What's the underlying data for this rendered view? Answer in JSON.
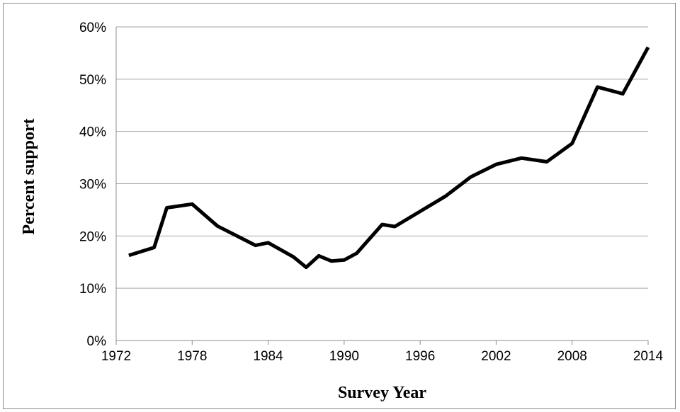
{
  "chart_data": {
    "type": "line",
    "title": "",
    "xlabel": "Survey Year",
    "ylabel": "Percent support",
    "xlim": [
      1972,
      2014
    ],
    "ylim": [
      0,
      60
    ],
    "x_ticks": [
      1972,
      1978,
      1984,
      1990,
      1996,
      2002,
      2008,
      2014
    ],
    "x_tick_labels": [
      "1972",
      "1978",
      "1984",
      "1990",
      "1996",
      "2002",
      "2008",
      "2014"
    ],
    "y_ticks": [
      0,
      10,
      20,
      30,
      40,
      50,
      60
    ],
    "y_tick_labels": [
      "0%",
      "10%",
      "20%",
      "30%",
      "40%",
      "50%",
      "60%"
    ],
    "grid": "horizontal",
    "legend": "none",
    "series": [
      {
        "color": "#000000",
        "x": [
          1973,
          1975,
          1976,
          1978,
          1980,
          1983,
          1984,
          1986,
          1987,
          1988,
          1989,
          1990,
          1991,
          1993,
          1994,
          1996,
          1998,
          2000,
          2002,
          2004,
          2006,
          2008,
          2010,
          2012,
          2014
        ],
        "y": [
          16.3,
          17.8,
          25.4,
          26.1,
          21.9,
          18.2,
          18.7,
          16.0,
          14.0,
          16.2,
          15.2,
          15.4,
          16.7,
          22.2,
          21.8,
          24.7,
          27.6,
          31.3,
          33.7,
          34.9,
          34.2,
          37.7,
          48.5,
          47.2,
          56.1
        ]
      }
    ]
  }
}
